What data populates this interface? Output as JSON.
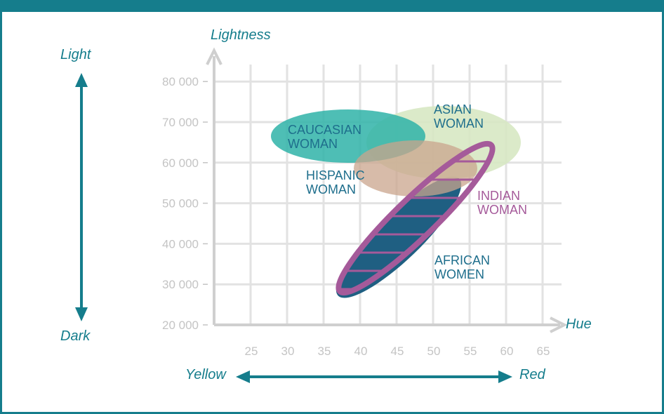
{
  "chart_data": {
    "type": "scatter",
    "title": "",
    "x_axis": {
      "label": "Hue",
      "ticks": [
        "25",
        "30",
        "35",
        "40",
        "45",
        "50",
        "55",
        "60",
        "65"
      ],
      "range": [
        20,
        65
      ]
    },
    "y_axis": {
      "label": "Lightness",
      "ticks": [
        "20 000",
        "30 000",
        "40 000",
        "50 000",
        "60 000",
        "70 000",
        "80 000"
      ],
      "range": [
        20000,
        85000
      ]
    },
    "grid": true,
    "direction_labels": {
      "top": "Light",
      "bottom": "Dark",
      "left": "Yellow",
      "right": "Red"
    },
    "regions": [
      {
        "label": [
          "AFRICAN",
          "WOMEN"
        ],
        "color": "#1f5f82",
        "style": "filled-ellipse",
        "center": {
          "hue": 47.5,
          "lightness": 40000
        },
        "extent_hue": [
          38,
          57
        ],
        "extent_lightness": [
          29000,
          52000
        ]
      },
      {
        "label": [
          "ASIAN",
          "WOMAN"
        ],
        "color": "#d7e8c3",
        "style": "filled-ellipse",
        "center": {
          "hue": 51.5,
          "lightness": 63500
        },
        "extent_hue": [
          40,
          63
        ],
        "extent_lightness": [
          54500,
          72500
        ]
      },
      {
        "label": [
          "CAUCASIAN",
          "WOMAN"
        ],
        "color": "#2fb3a8",
        "style": "filled-ellipse",
        "center": {
          "hue": 40,
          "lightness": 65000
        },
        "extent_hue": [
          28,
          49
        ],
        "extent_lightness": [
          58000,
          72000
        ]
      },
      {
        "label": [
          "HISPANIC",
          "WOMAN"
        ],
        "color": "#c9a48c",
        "style": "filled-ellipse",
        "center": {
          "hue": 46.5,
          "lightness": 57500
        },
        "extent_hue": [
          40,
          56
        ],
        "extent_lightness": [
          50500,
          64500
        ]
      },
      {
        "label": [
          "INDIAN",
          "WOMAN"
        ],
        "color": "#a55a9a",
        "style": "hatched-outline",
        "center": {
          "hue": 48,
          "lightness": 45000
        },
        "extent_hue": [
          37,
          59
        ],
        "extent_lightness": [
          28000,
          63500
        ]
      }
    ]
  }
}
